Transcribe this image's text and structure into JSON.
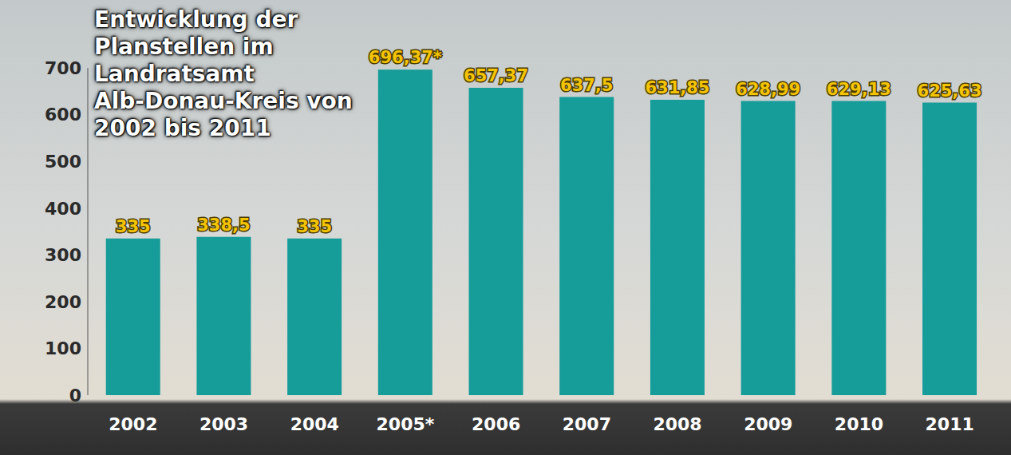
{
  "chart_data": {
    "type": "bar",
    "title": "Entwicklung der Planstellen im Landratsamt Alb-Donau-Kreis von 2002 bis 2011",
    "categories": [
      "2002",
      "2003",
      "2004",
      "2005*",
      "2006",
      "2007",
      "2008",
      "2009",
      "2010",
      "2011"
    ],
    "values": [
      335,
      338.5,
      335,
      696.37,
      657.37,
      637.5,
      631.85,
      628.99,
      629.13,
      625.63
    ],
    "value_labels": [
      "335",
      "338,5",
      "335",
      "696,37*",
      "657,37",
      "637,5",
      "631,85",
      "628,99",
      "629,13",
      "625,63"
    ],
    "color": "#169c99",
    "ylim": [
      0,
      700
    ],
    "yticks": [
      0,
      100,
      200,
      300,
      400,
      500,
      600,
      700
    ],
    "grid": false,
    "data_labels": true
  }
}
